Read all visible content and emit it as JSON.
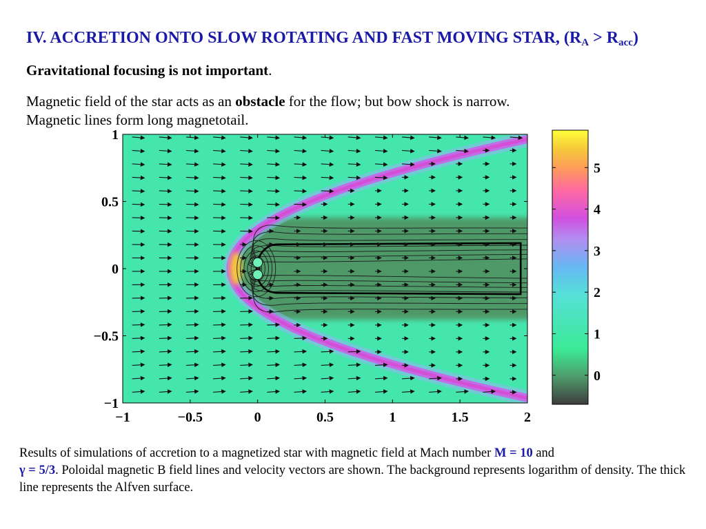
{
  "title": {
    "main": "IV. ACCRETION ONTO SLOW ROTATING AND FAST MOVING STAR, (R",
    "sub_a": "A",
    "gt": " > R",
    "sub_acc": "acc",
    "close": ")"
  },
  "subhead": {
    "bold": "Gravitational focusing is not important",
    "end": "."
  },
  "paragraph": {
    "pre": "Magnetic field of the star acts as an ",
    "bold": "obstacle",
    "post": " for the flow; but bow shock is narrow.",
    "line2": "Magnetic lines form long magnetotail."
  },
  "caption": {
    "part1": "Results of simulations of accretion to a magnetized star with magnetic field at Mach number ",
    "mach": "M = 10",
    "part2": " and",
    "gamma": "γ = 5/3",
    "part3": ". Poloidal magnetic B field lines and velocity vectors are shown. The background represents logarithm of density. The thick line represents the Alfven surface."
  },
  "chart_data": {
    "type": "heatmap",
    "xlim": [
      -1,
      2
    ],
    "ylim": [
      -1,
      1
    ],
    "x_ticks": [
      "−1",
      "−0.5",
      "0",
      "0.5",
      "1",
      "1.5",
      "2"
    ],
    "x_tick_values": [
      -1,
      -0.5,
      0,
      0.5,
      1,
      1.5,
      2
    ],
    "y_ticks": [
      "1",
      "0.5",
      "0",
      "−0.5",
      "−1"
    ],
    "y_tick_values": [
      1,
      0.5,
      0,
      -0.5,
      -1
    ],
    "colorbar": {
      "ticks": [
        "5",
        "4",
        "3",
        "2",
        "1",
        "0"
      ],
      "tick_values": [
        5,
        4,
        3,
        2,
        1,
        0
      ],
      "range": [
        -0.7,
        5.9
      ],
      "colors": [
        "#3d3d3d",
        "#4f9a6a",
        "#3bea95",
        "#56e0d8",
        "#66b8f2",
        "#b08ff0",
        "#d24fe0",
        "#ff6aa2",
        "#ff9a5c",
        "#f5c83a",
        "#ffff3a"
      ]
    },
    "background_level": 1.1,
    "bow_shock_vertex_x": -0.2,
    "alfven_surface_half_width": 0.19,
    "alfven_surface_x_range": [
      -0.05,
      1.95
    ],
    "star_position": [
      0,
      0
    ]
  }
}
